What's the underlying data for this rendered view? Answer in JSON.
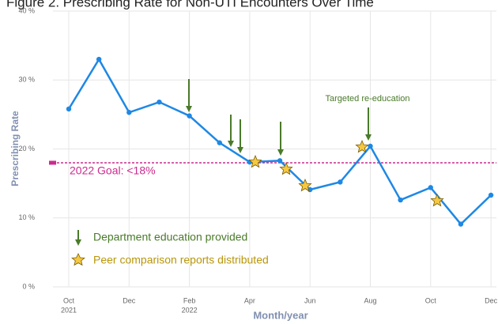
{
  "chart_data": {
    "type": "line",
    "title": "Figure 2. Prescribing Rate for Non-UTI Encounters Over Time",
    "categories": [
      "Oct",
      null,
      "Dec",
      null,
      "Feb",
      null,
      "Apr",
      null,
      "Jun",
      null,
      "Aug",
      null,
      "Oct",
      null,
      "Dec"
    ],
    "category_years": [
      "2021",
      null,
      null,
      null,
      "2022",
      null,
      null,
      null,
      null,
      null,
      null,
      null,
      null,
      null,
      null
    ],
    "series": [
      {
        "name": "Prescribing Rate",
        "color": "#1e88e5",
        "values": [
          25.8,
          33.0,
          25.3,
          26.8,
          24.8,
          20.9,
          18.1,
          18.3,
          14.1,
          15.2,
          20.4,
          12.6,
          14.4,
          9.1,
          13.3
        ]
      }
    ],
    "ylim": [
      0,
      40
    ],
    "yticks": [
      {
        "value": 0,
        "label": "0 %"
      },
      {
        "value": 10,
        "label": "10 %"
      },
      {
        "value": 20,
        "label": "20 %"
      },
      {
        "value": 30,
        "label": "30 %"
      },
      {
        "value": 40,
        "label": "40 %"
      }
    ],
    "y_label": "Prescribing Rate",
    "x_label": "Month/year",
    "grid": true,
    "goal": {
      "value": 18,
      "label": "2022 Goal: <18%",
      "color": "#cc2a8f"
    },
    "annotation": "Targeted re-education",
    "legend": [
      {
        "name": "Department education provided",
        "color": "#4a7a2a"
      },
      {
        "name": "Peer comparison reports distributed",
        "color": "#b8960a"
      }
    ]
  }
}
